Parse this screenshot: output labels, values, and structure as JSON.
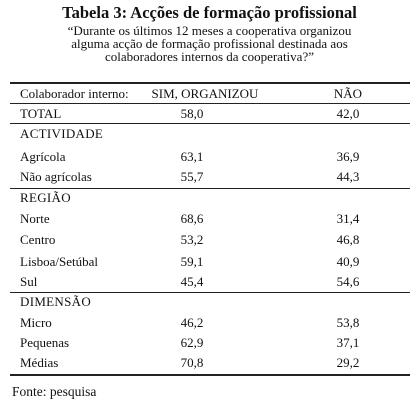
{
  "title": "Tabela 3: Acções de formação profissional",
  "subtitle": [
    "“Durante os últimos 12 meses a cooperativa organizou",
    "alguma acção de formação profissional destinada aos",
    "colaboradores internos da cooperativa?”"
  ],
  "table": {
    "header": [
      "Colaborador interno:",
      "SIM, ORGANIZOU",
      "NÃO"
    ],
    "total": [
      "TOTAL",
      "58,0",
      "42,0"
    ],
    "sections": [
      {
        "title": "ACTIVIDADE",
        "rows": [
          [
            "Agrícola",
            "63,1",
            "36,9"
          ],
          [
            "Não agrícolas",
            "55,7",
            "44,3"
          ]
        ]
      },
      {
        "title": "REGIÃO",
        "rows": [
          [
            "Norte",
            "68,6",
            "31,4"
          ],
          [
            "Centro",
            "53,2",
            "46,8"
          ],
          [
            "Lisboa/Setúbal",
            "59,1",
            "40,9"
          ],
          [
            "Sul",
            "45,4",
            "54,6"
          ]
        ]
      },
      {
        "title": "DIMENSÃO",
        "rows": [
          [
            "Micro",
            "46,2",
            "53,8"
          ],
          [
            "Pequenas",
            "62,9",
            "37,1"
          ],
          [
            "Médias",
            "70,8",
            "29,2"
          ]
        ]
      }
    ]
  },
  "source": "Fonte: pesquisa"
}
